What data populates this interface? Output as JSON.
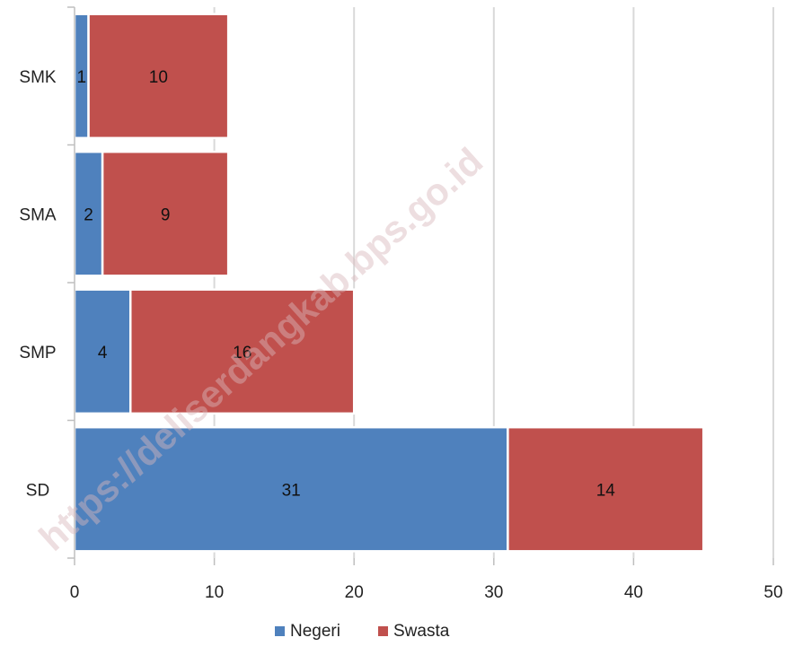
{
  "chart_data": {
    "type": "bar",
    "orientation": "horizontal",
    "stacked": true,
    "title": "",
    "xlabel": "",
    "ylabel": "",
    "categories": [
      "SMK",
      "SMA",
      "SMP",
      "SD"
    ],
    "series": [
      {
        "name": "Negeri",
        "color": "#4f81bd",
        "values": [
          1,
          2,
          4,
          31
        ]
      },
      {
        "name": "Swasta",
        "color": "#c0504d",
        "values": [
          10,
          9,
          16,
          14
        ]
      }
    ],
    "xlim": [
      0,
      50
    ],
    "x_ticks": [
      0,
      10,
      20,
      30,
      40,
      50
    ],
    "grid": "vertical",
    "legend_position": "bottom"
  },
  "watermark": {
    "text": "https://deliserdangkab.bps.go.id"
  }
}
